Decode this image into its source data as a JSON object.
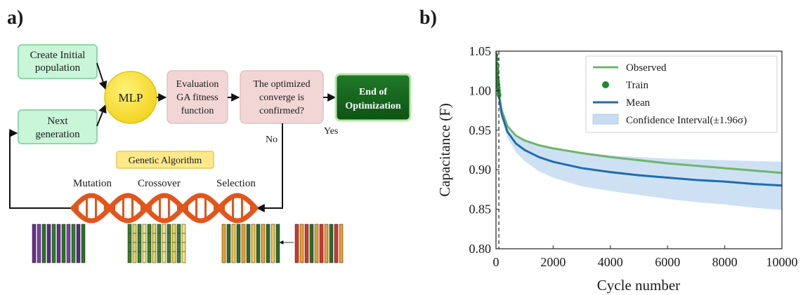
{
  "panel_a": {
    "label": "a)",
    "nodes": {
      "create_initial": [
        "Create Initial",
        "population"
      ],
      "next_generation": [
        "Next",
        "generation"
      ],
      "mlp": "MLP",
      "evaluation": [
        "Evaluation",
        "GA fitness",
        "function"
      ],
      "converge": [
        "The optimized",
        "converge is",
        "confirmed?"
      ],
      "end": [
        "End of",
        "Optimization"
      ]
    },
    "edge_labels": {
      "no": "No",
      "yes": "Yes"
    },
    "ga_title": "Genetic Algorithm",
    "stages": [
      "Mutation",
      "Crossover",
      "Selection"
    ],
    "colors": {
      "green_box": "#c9f5d9",
      "green_box_border": "#8fd7a9",
      "mlp": "#f7e23a",
      "pink_box": "#f2d6d6",
      "end_box": "#17661f",
      "dna": "#e2551b",
      "ga_label_bg": "#fde98c"
    }
  },
  "panel_b": {
    "label": "b)"
  },
  "chart_data": {
    "type": "line",
    "ylabel": "Capacitance (F)",
    "xlabel": "Cycle number",
    "xlim": [
      0,
      10000
    ],
    "ylim": [
      0.8,
      1.05
    ],
    "xticks": [
      0,
      2000,
      4000,
      6000,
      8000,
      10000
    ],
    "yticks": [
      "0.80",
      "0.85",
      "0.90",
      "0.95",
      "1.00",
      "1.05"
    ],
    "vline_x": 100,
    "legend_position": "top-right",
    "legend": [
      "Observed",
      "Train",
      "Mean",
      "Confidence Interval(±1.96σ)"
    ],
    "series": [
      {
        "name": "Observed",
        "color": "#6db56d",
        "x": [
          0,
          100,
          200,
          400,
          700,
          1000,
          1500,
          2000,
          3000,
          4000,
          5000,
          6000,
          7000,
          8000,
          9000,
          10000
        ],
        "y": [
          1.05,
          0.995,
          0.975,
          0.955,
          0.943,
          0.937,
          0.931,
          0.927,
          0.921,
          0.916,
          0.912,
          0.908,
          0.905,
          0.902,
          0.899,
          0.896
        ]
      },
      {
        "name": "Train",
        "color": "#1e8a2e",
        "x": [
          0,
          10,
          20,
          30,
          40,
          50,
          60,
          70,
          80,
          90,
          100,
          110
        ],
        "y": [
          1.045,
          1.04,
          1.034,
          1.028,
          1.022,
          1.017,
          1.012,
          1.008,
          1.004,
          1.0,
          0.996,
          0.994
        ]
      },
      {
        "name": "Mean",
        "color": "#1f6cb0",
        "x": [
          100,
          200,
          400,
          700,
          1000,
          1500,
          2000,
          3000,
          4000,
          5000,
          6000,
          7000,
          8000,
          9000,
          10000
        ],
        "y": [
          0.995,
          0.97,
          0.948,
          0.933,
          0.925,
          0.916,
          0.91,
          0.902,
          0.897,
          0.893,
          0.89,
          0.887,
          0.885,
          0.882,
          0.88
        ]
      }
    ],
    "band": {
      "name": "Confidence Interval(±1.96σ)",
      "color": "#c5dcf1",
      "x": [
        100,
        200,
        400,
        700,
        1000,
        1500,
        2000,
        3000,
        4000,
        5000,
        6000,
        7000,
        8000,
        9000,
        10000
      ],
      "upper": [
        0.995,
        0.972,
        0.952,
        0.941,
        0.936,
        0.93,
        0.926,
        0.922,
        0.918,
        0.916,
        0.914,
        0.913,
        0.912,
        0.911,
        0.91
      ],
      "lower": [
        0.995,
        0.966,
        0.941,
        0.922,
        0.911,
        0.898,
        0.89,
        0.879,
        0.873,
        0.868,
        0.863,
        0.859,
        0.856,
        0.852,
        0.849
      ]
    }
  }
}
